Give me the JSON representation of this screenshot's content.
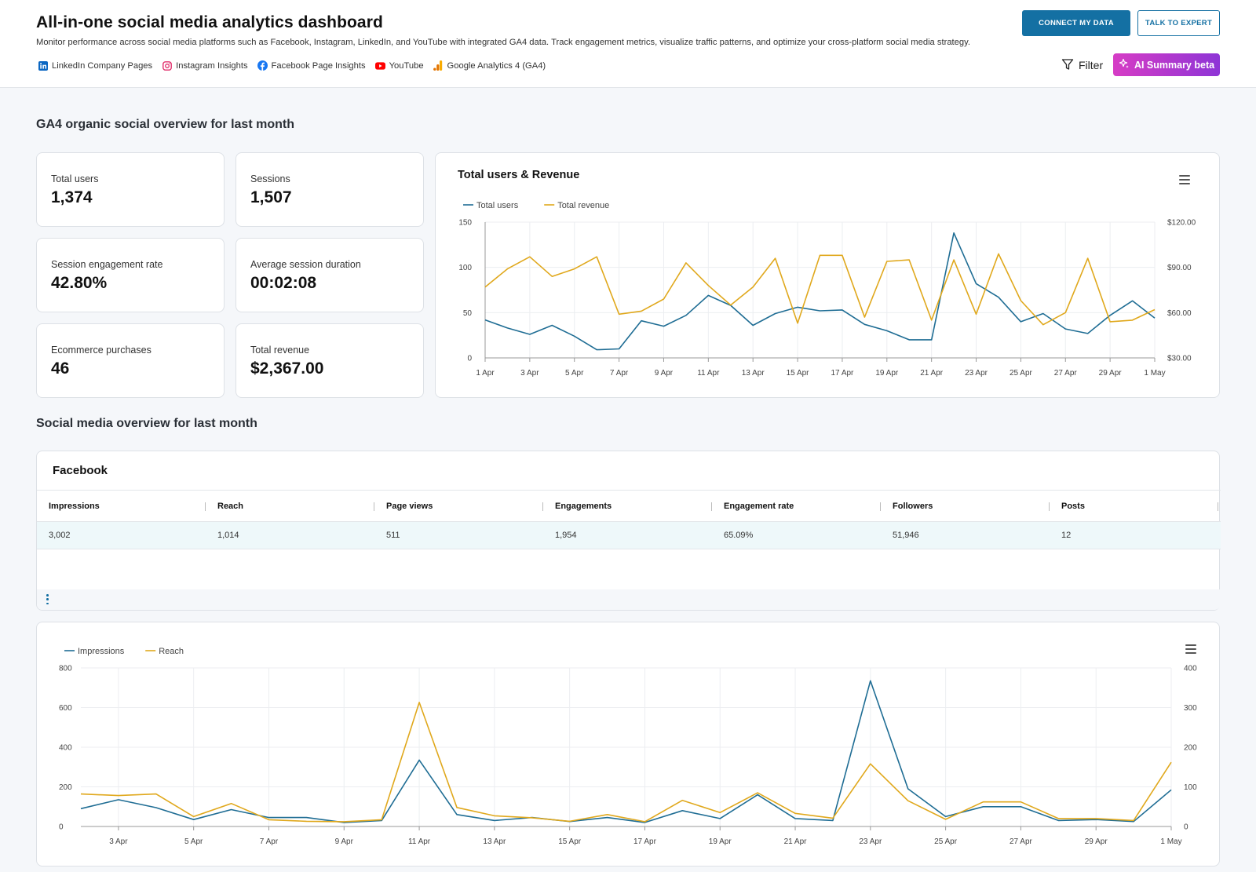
{
  "header": {
    "title": "All-in-one social media analytics dashboard",
    "subtitle": "Monitor performance across social media platforms such as Facebook, Instagram, LinkedIn, and YouTube with integrated GA4 data. Track engagement metrics, visualize traffic patterns, and optimize your cross-platform social media strategy.",
    "sources": [
      {
        "label": "LinkedIn Company Pages",
        "icon": "linkedin-icon",
        "color": "#0a66c2"
      },
      {
        "label": "Instagram Insights",
        "icon": "instagram-icon",
        "color": "#e1306c"
      },
      {
        "label": "Facebook Page Insights",
        "icon": "facebook-icon",
        "color": "#1877f2"
      },
      {
        "label": "YouTube",
        "icon": "youtube-icon",
        "color": "#ff0000"
      },
      {
        "label": "Google Analytics 4 (GA4)",
        "icon": "ga4-icon",
        "color": "#f9ab00"
      }
    ],
    "connect_label": "CONNECT MY DATA",
    "expert_label": "TALK TO EXPERT",
    "filter_label": "Filter",
    "ai_label": "AI Summary beta"
  },
  "ga4_section": {
    "title": "GA4 organic social overview for last month",
    "kpis": [
      {
        "label": "Total users",
        "value": "1,374"
      },
      {
        "label": "Sessions",
        "value": "1,507"
      },
      {
        "label": "Session engagement rate",
        "value": "42.80%"
      },
      {
        "label": "Average session duration",
        "value": "00:02:08"
      },
      {
        "label": "Ecommerce purchases",
        "value": "46"
      },
      {
        "label": "Total revenue",
        "value": "$2,367.00"
      }
    ]
  },
  "social_section": {
    "title": "Social media overview for last month",
    "facebook": {
      "title": "Facebook",
      "columns": [
        "Impressions",
        "Reach",
        "Page views",
        "Engagements",
        "Engagement rate",
        "Followers",
        "Posts"
      ],
      "row": [
        "3,002",
        "1,014",
        "511",
        "1,954",
        "65.09%",
        "51,946",
        "12"
      ]
    }
  },
  "colors": {
    "blue": "#1f6d94",
    "gold": "#e0a81c",
    "accent": "#1470a3"
  },
  "chart_data": [
    {
      "type": "line",
      "title": "Total users & Revenue",
      "legend": "top-left",
      "grid": true,
      "x_tick_labels": [
        "1 Apr",
        "3 Apr",
        "5 Apr",
        "7 Apr",
        "9 Apr",
        "11 Apr",
        "13 Apr",
        "15 Apr",
        "17 Apr",
        "19 Apr",
        "21 Apr",
        "23 Apr",
        "25 Apr",
        "27 Apr",
        "29 Apr",
        "1 May"
      ],
      "x": [
        "1 Apr",
        "2 Apr",
        "3 Apr",
        "4 Apr",
        "5 Apr",
        "6 Apr",
        "7 Apr",
        "8 Apr",
        "9 Apr",
        "10 Apr",
        "11 Apr",
        "12 Apr",
        "13 Apr",
        "14 Apr",
        "15 Apr",
        "16 Apr",
        "17 Apr",
        "18 Apr",
        "19 Apr",
        "20 Apr",
        "21 Apr",
        "22 Apr",
        "23 Apr",
        "24 Apr",
        "25 Apr",
        "26 Apr",
        "27 Apr",
        "28 Apr",
        "29 Apr",
        "30 Apr",
        "1 May"
      ],
      "y_left": {
        "ticks": [
          "0",
          "50",
          "100",
          "150"
        ],
        "range": [
          0,
          150
        ]
      },
      "y_right": {
        "ticks": [
          "$30.00",
          "$60.00",
          "$90.00",
          "$120.00"
        ],
        "range": [
          30,
          120
        ]
      },
      "series": [
        {
          "name": "Total users",
          "axis": "left",
          "color": "#1f6d94",
          "values": [
            42,
            33,
            26,
            36,
            24,
            9,
            10,
            41,
            35,
            47,
            69,
            58,
            36,
            49,
            56,
            52,
            53,
            37,
            30,
            20,
            20,
            138,
            82,
            67,
            40,
            49,
            32,
            27,
            47,
            63,
            44
          ]
        },
        {
          "name": "Total revenue",
          "axis": "right",
          "color": "#e0a81c",
          "values": [
            77,
            89,
            97,
            84,
            89,
            97,
            59,
            61,
            69,
            93,
            78,
            65,
            77,
            96,
            53,
            98,
            98,
            57,
            94,
            95,
            55,
            95,
            59,
            99,
            68,
            52,
            60,
            96,
            54,
            55,
            62
          ]
        }
      ]
    },
    {
      "type": "line",
      "title": "",
      "legend": "top-left",
      "grid": true,
      "x_tick_labels": [
        "3 Apr",
        "5 Apr",
        "7 Apr",
        "9 Apr",
        "11 Apr",
        "13 Apr",
        "15 Apr",
        "17 Apr",
        "19 Apr",
        "21 Apr",
        "23 Apr",
        "25 Apr",
        "27 Apr",
        "29 Apr",
        "1 May"
      ],
      "x": [
        "2 Apr",
        "3 Apr",
        "4 Apr",
        "5 Apr",
        "6 Apr",
        "7 Apr",
        "8 Apr",
        "9 Apr",
        "10 Apr",
        "11 Apr",
        "12 Apr",
        "13 Apr",
        "14 Apr",
        "15 Apr",
        "16 Apr",
        "17 Apr",
        "18 Apr",
        "19 Apr",
        "20 Apr",
        "21 Apr",
        "22 Apr",
        "23 Apr",
        "24 Apr",
        "25 Apr",
        "26 Apr",
        "27 Apr",
        "28 Apr",
        "29 Apr",
        "30 Apr",
        "1 May"
      ],
      "y_left": {
        "ticks": [
          "0",
          "200",
          "400",
          "600",
          "800"
        ],
        "range": [
          0,
          800
        ]
      },
      "y_right": {
        "ticks": [
          "0",
          "100",
          "200",
          "300",
          "400"
        ],
        "range": [
          0,
          400
        ]
      },
      "series": [
        {
          "name": "Impressions",
          "axis": "left",
          "color": "#1f6d94",
          "values": [
            90,
            135,
            95,
            35,
            85,
            45,
            45,
            20,
            30,
            335,
            60,
            30,
            45,
            25,
            45,
            20,
            80,
            40,
            160,
            40,
            30,
            735,
            190,
            50,
            100,
            100,
            30,
            35,
            25,
            185
          ]
        },
        {
          "name": "Reach",
          "axis": "right",
          "color": "#e0a81c",
          "values": [
            82,
            78,
            82,
            25,
            58,
            17,
            13,
            12,
            17,
            313,
            48,
            27,
            22,
            13,
            30,
            12,
            66,
            35,
            85,
            33,
            21,
            158,
            65,
            18,
            62,
            62,
            20,
            20,
            15,
            162
          ]
        }
      ]
    }
  ]
}
